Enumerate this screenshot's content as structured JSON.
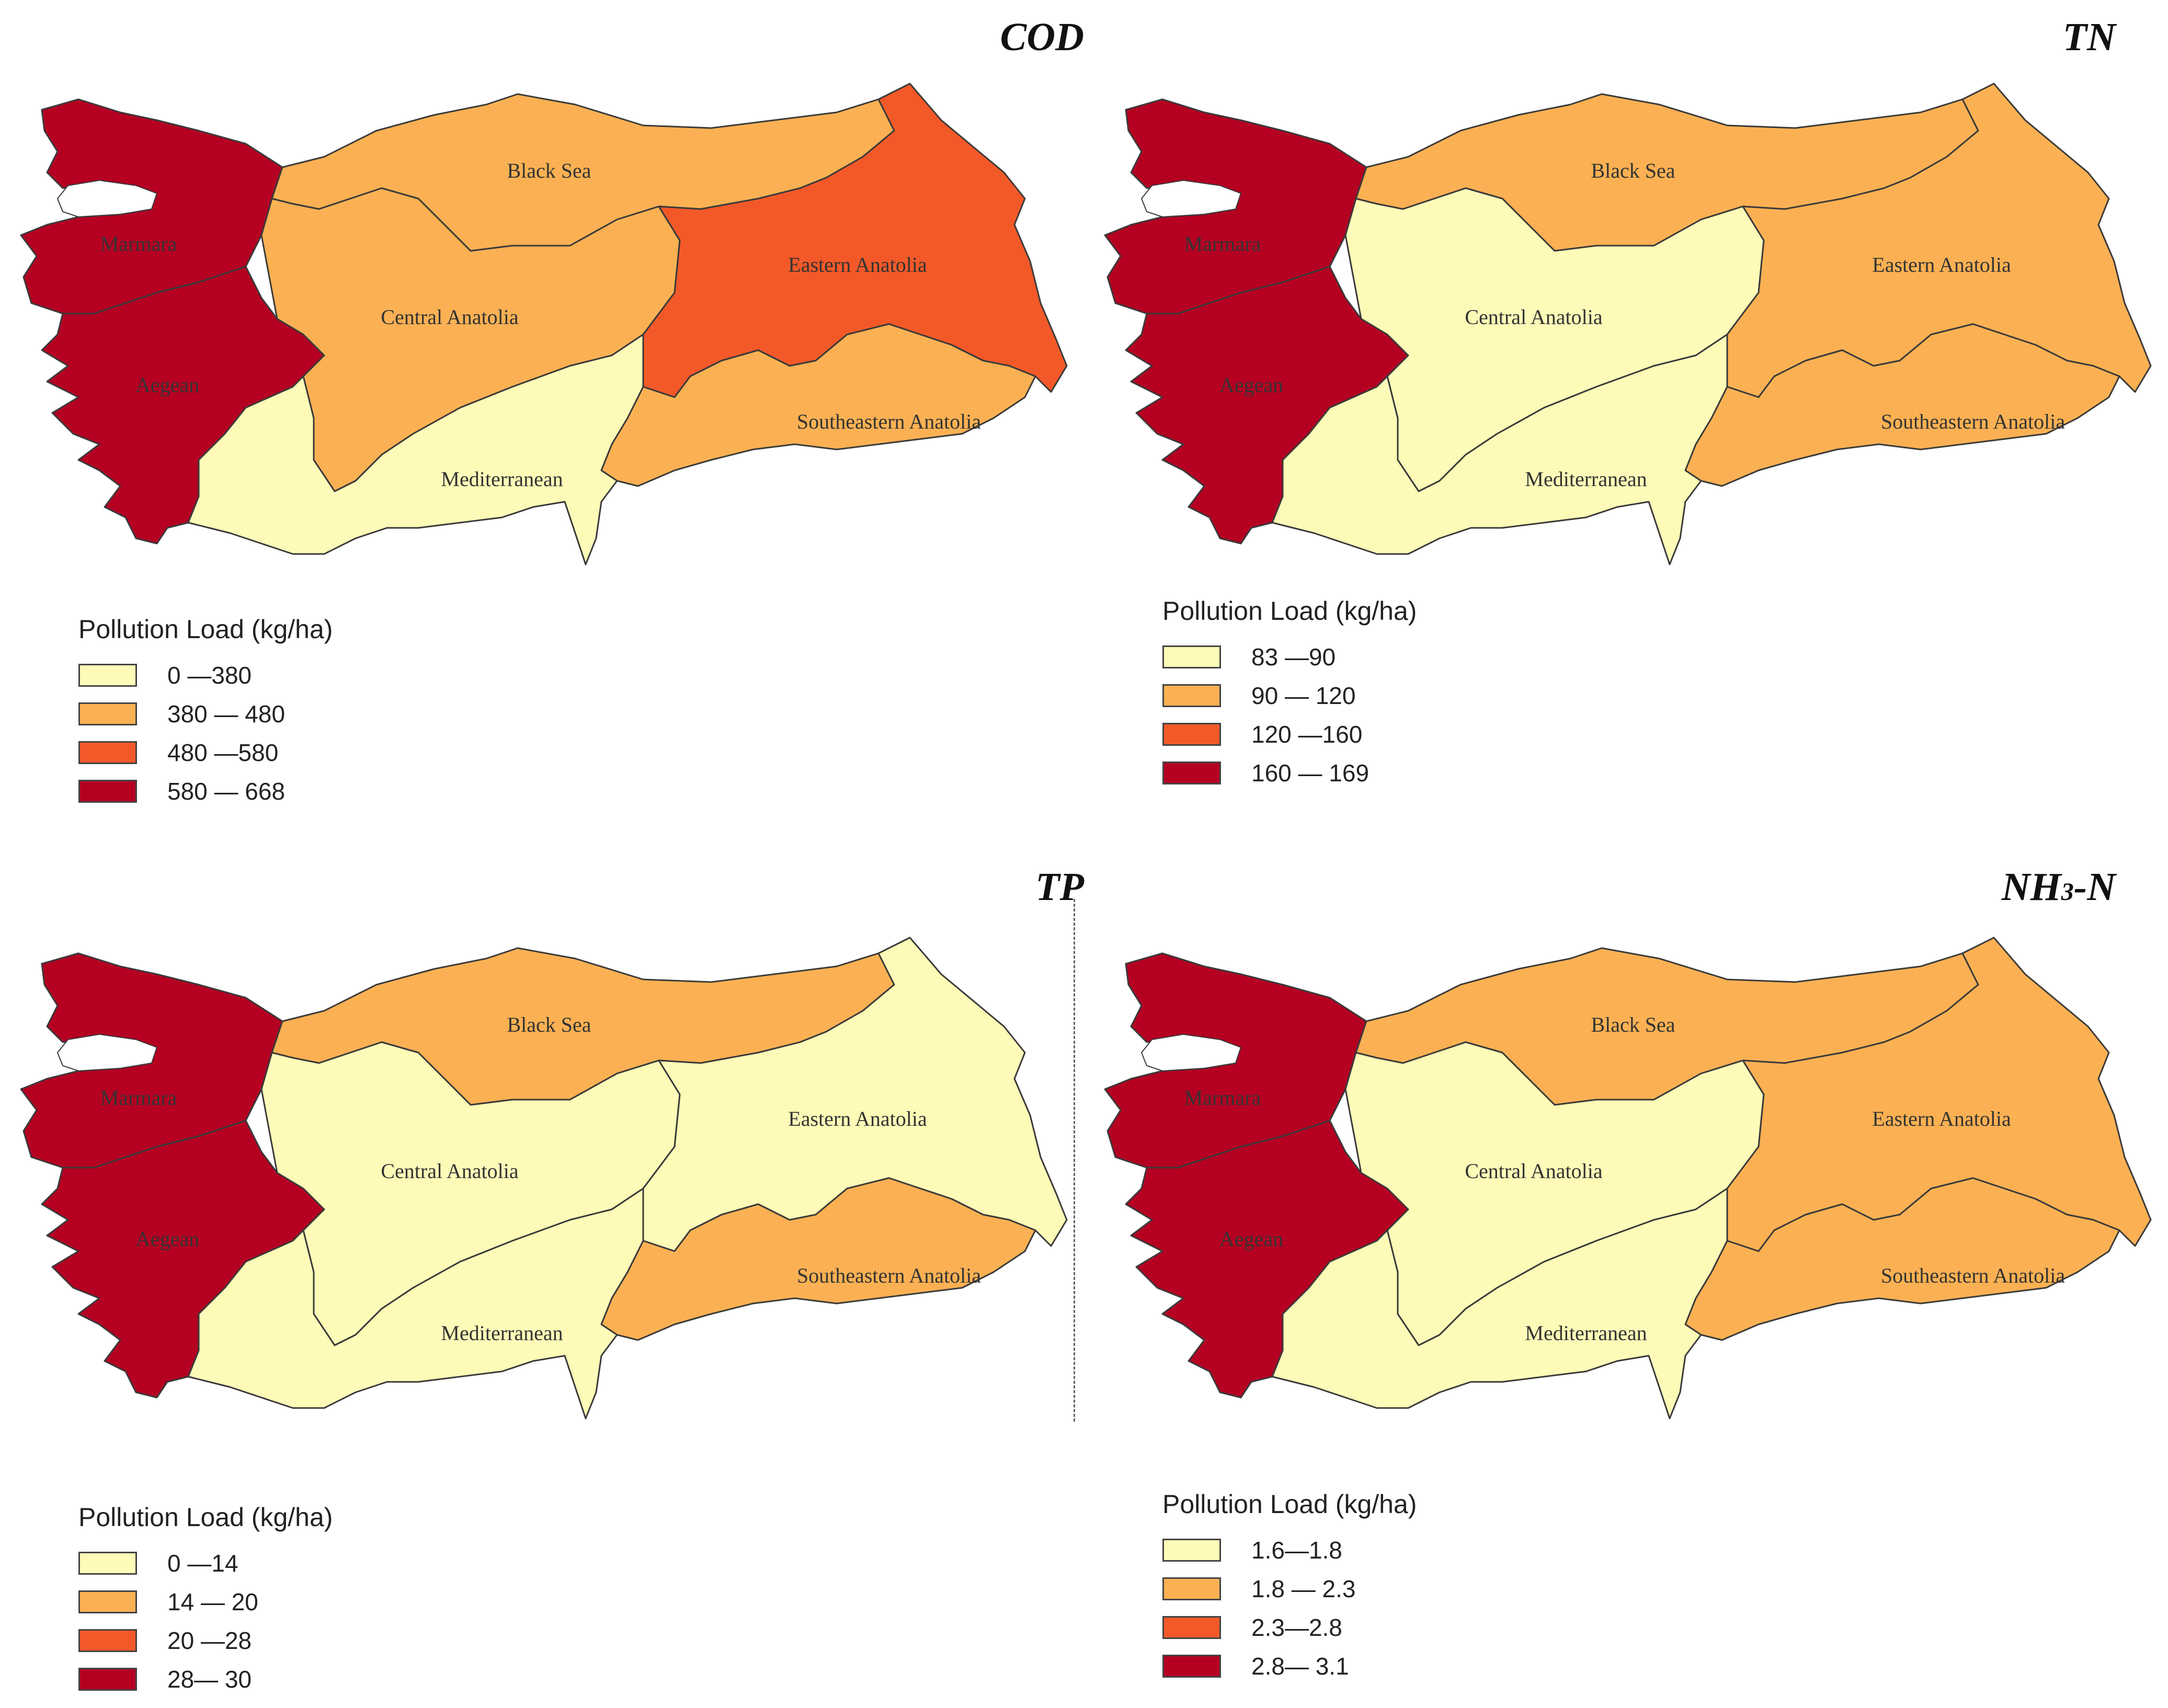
{
  "palette": {
    "class1": "#fefbb8",
    "class2": "#fbb153",
    "class3": "#f35928",
    "class4": "#b50022",
    "border": "#3a3a3a"
  },
  "regions": [
    "Marmara",
    "Aegean",
    "Black Sea",
    "Central Anatolia",
    "Eastern Anatolia",
    "Southeastern Anatolia",
    "Mediterranean"
  ],
  "panels": [
    {
      "title": "COD",
      "legend_title": "Pollution Load (kg/ha)",
      "legend": [
        "0 —380",
        "380 — 480",
        "480 —580",
        "580 — 668"
      ],
      "region_labels": {
        "Marmara": "Marmara",
        "Aegean": "Aegean",
        "Black Sea": "Black Sea",
        "Central Anatolia": "Central Anatolia",
        "Eastern Anatolia": "Eastern Anatolia",
        "Southeastern Anatolia": "Southeastern Anatolia",
        "Mediterranean": "Mediterranean"
      },
      "region_class": {
        "Marmara": 4,
        "Aegean": 4,
        "Black Sea": 2,
        "Central Anatolia": 2,
        "Eastern Anatolia": 3,
        "Southeastern Anatolia": 2,
        "Mediterranean": 1
      }
    },
    {
      "title": "TN",
      "legend_title": "Pollution Load (kg/ha)",
      "legend": [
        "83 —90",
        "90 — 120",
        "120 —160",
        "160 — 169"
      ],
      "region_labels": {
        "Marmara": "Marmara",
        "Aegean": "Aegean",
        "Black Sea": "Black Sea",
        "Central Anatolia": "Central Anatolia",
        "Eastern Anatolia": "Eastern Anatolia",
        "Southeastern Anatolia": "Southeastern Anatolia",
        "Mediterranean": "Mediterranean"
      },
      "region_class": {
        "Marmara": 4,
        "Aegean": 4,
        "Black Sea": 2,
        "Central Anatolia": 1,
        "Eastern Anatolia": 2,
        "Southeastern Anatolia": 2,
        "Mediterranean": 1
      }
    },
    {
      "title": "TP",
      "legend_title": "Pollution Load (kg/ha)",
      "legend": [
        "0 —14",
        "14 — 20",
        "20 —28",
        "28— 30"
      ],
      "region_labels": {
        "Marmara": "Marmara",
        "Aegean": "Aegean",
        "Black Sea": "Black Sea",
        "Central Anatolia": "Central Anatolia",
        "Eastern Anatolia": "Eastern Anatolia",
        "Southeastern Anatolia": "Southeastern Anatolia",
        "Mediterranean": "Mediterranean"
      },
      "region_class": {
        "Marmara": 4,
        "Aegean": 4,
        "Black Sea": 2,
        "Central Anatolia": 1,
        "Eastern Anatolia": 1,
        "Southeastern Anatolia": 2,
        "Mediterranean": 1
      }
    },
    {
      "title": "NH3-N",
      "title_main": "NH",
      "title_sub": "3",
      "title_tail": "-N",
      "legend_title": "Pollution Load (kg/ha)",
      "legend": [
        "1.6—1.8",
        "1.8 — 2.3",
        "2.3—2.8",
        "2.8— 3.1"
      ],
      "region_labels": {
        "Marmara": "Marmara",
        "Aegean": "Aegean",
        "Black Sea": "Black Sea",
        "Central Anatolia": "Central Anatolia",
        "Eastern Anatolia": "Eastern Anatolia",
        "Southeastern Anatolia": "Southeastern Anatolia",
        "Mediterranean": "Mediterranean"
      },
      "region_class": {
        "Marmara": 4,
        "Aegean": 4,
        "Black Sea": 2,
        "Central Anatolia": 1,
        "Eastern Anatolia": 2,
        "Southeastern Anatolia": 2,
        "Mediterranean": 1
      }
    }
  ]
}
